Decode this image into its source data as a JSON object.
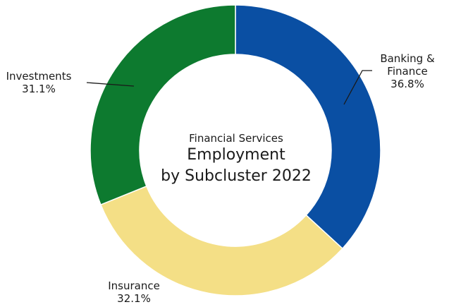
{
  "chart_data": {
    "type": "pie",
    "title": {
      "line1": "Financial Services",
      "line2": "Employment",
      "line3": "by Subcluster 2022"
    },
    "slices": [
      {
        "label_lines": [
          "Banking &",
          "Finance"
        ],
        "value_text": "36.8%",
        "value": 36.8,
        "color": "#0a4fa3"
      },
      {
        "label_lines": [
          "Insurance"
        ],
        "value_text": "32.1%",
        "value": 32.1,
        "color": "#f4df86"
      },
      {
        "label_lines": [
          "Investments"
        ],
        "value_text": "31.1%",
        "value": 31.1,
        "color": "#0d7a2f"
      }
    ]
  }
}
